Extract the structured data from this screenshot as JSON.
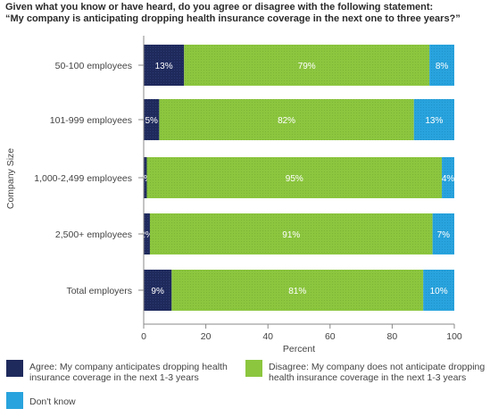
{
  "title": {
    "line1": "Given what you know or have heard, do you agree or disagree with the following statement:",
    "line2": "“My company is anticipating dropping health insurance coverage in the next one to three years?”"
  },
  "chart_data": {
    "type": "bar",
    "orientation": "horizontal",
    "stacked": true,
    "ylabel": "Company Size",
    "xlabel": "Percent",
    "xlim": [
      0,
      100
    ],
    "xticks": [
      0,
      20,
      40,
      60,
      80,
      100
    ],
    "categories": [
      "50-100 employees",
      "101-999 employees",
      "1,000-2,499 employees",
      "2,500+ employees",
      "Total employers"
    ],
    "series": [
      {
        "name": "Agree: My company anticipates dropping health insurance coverage in the next 1-3 years",
        "color": "#1f2a5c",
        "values": [
          13,
          5,
          1,
          2,
          9
        ]
      },
      {
        "name": "Disagree: My company does not anticipate dropping health insurance coverage in the next 1-3 years",
        "color": "#8cc63f",
        "values": [
          79,
          82,
          95,
          91,
          81
        ]
      },
      {
        "name": "Don't know",
        "color": "#29a3dd",
        "values": [
          8,
          13,
          4,
          7,
          10
        ]
      }
    ],
    "legend_position": "bottom",
    "grid": false
  }
}
